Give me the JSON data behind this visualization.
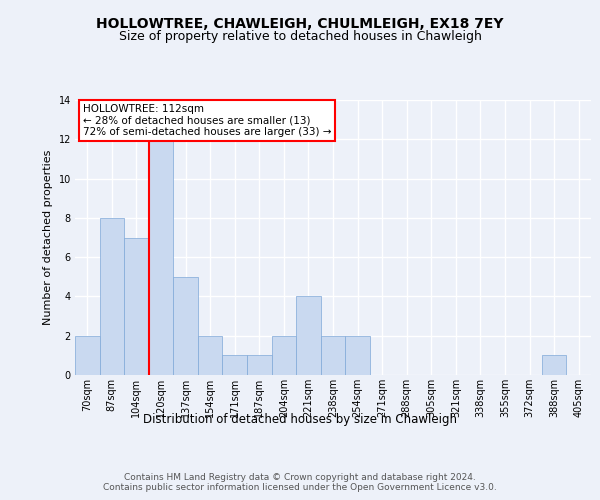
{
  "title1": "HOLLOWTREE, CHAWLEIGH, CHULMLEIGH, EX18 7EY",
  "title2": "Size of property relative to detached houses in Chawleigh",
  "xlabel": "Distribution of detached houses by size in Chawleigh",
  "ylabel": "Number of detached properties",
  "bar_labels": [
    "70sqm",
    "87sqm",
    "104sqm",
    "120sqm",
    "137sqm",
    "154sqm",
    "171sqm",
    "187sqm",
    "204sqm",
    "221sqm",
    "238sqm",
    "254sqm",
    "271sqm",
    "288sqm",
    "305sqm",
    "321sqm",
    "338sqm",
    "355sqm",
    "372sqm",
    "388sqm",
    "405sqm"
  ],
  "bar_values": [
    2,
    8,
    7,
    13,
    5,
    2,
    1,
    1,
    2,
    4,
    2,
    2,
    0,
    0,
    0,
    0,
    0,
    0,
    0,
    1,
    0
  ],
  "bar_color": "#c9d9f0",
  "bar_edge_color": "#7fa8d8",
  "red_line_index": 3,
  "annotation_text": "HOLLOWTREE: 112sqm\n← 28% of detached houses are smaller (13)\n72% of semi-detached houses are larger (33) →",
  "annotation_box_color": "white",
  "annotation_box_edge": "red",
  "ylim": [
    0,
    14
  ],
  "yticks": [
    0,
    2,
    4,
    6,
    8,
    10,
    12,
    14
  ],
  "footer_text": "Contains HM Land Registry data © Crown copyright and database right 2024.\nContains public sector information licensed under the Open Government Licence v3.0.",
  "bg_color": "#edf1f9",
  "plot_bg_color": "#edf1f9",
  "grid_color": "#ffffff",
  "title1_fontsize": 10,
  "title2_fontsize": 9,
  "xlabel_fontsize": 8.5,
  "ylabel_fontsize": 8,
  "footer_fontsize": 6.5,
  "tick_fontsize": 7
}
